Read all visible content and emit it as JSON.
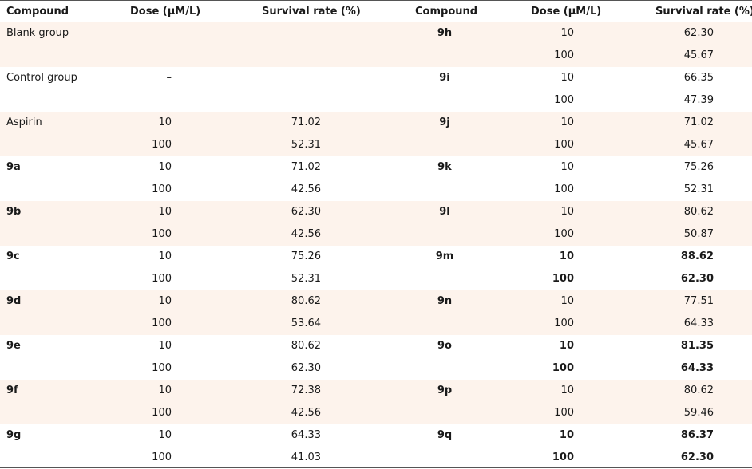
{
  "headers": [
    "Compound",
    "Dose (μM/L)",
    "Survival rate (%)",
    "Compound",
    "Dose (μM/L)",
    "Survival rate (%)"
  ],
  "groups": [
    {
      "left": {
        "compound": "Blank group",
        "compound_bold": false,
        "rows": [
          {
            "dose": "–",
            "rate": "",
            "bold": false
          },
          {
            "dose": "",
            "rate": "",
            "bold": false
          }
        ]
      },
      "right": {
        "compound": "9h",
        "compound_bold": true,
        "rows": [
          {
            "dose": "10",
            "rate": "62.30",
            "bold": false
          },
          {
            "dose": "100",
            "rate": "45.67",
            "bold": false
          }
        ]
      }
    },
    {
      "left": {
        "compound": "Control group",
        "compound_bold": false,
        "rows": [
          {
            "dose": "–",
            "rate": "",
            "bold": false
          },
          {
            "dose": "",
            "rate": "",
            "bold": false
          }
        ]
      },
      "right": {
        "compound": "9i",
        "compound_bold": true,
        "rows": [
          {
            "dose": "10",
            "rate": "66.35",
            "bold": false
          },
          {
            "dose": "100",
            "rate": "47.39",
            "bold": false
          }
        ]
      }
    },
    {
      "left": {
        "compound": "Aspirin",
        "compound_bold": false,
        "rows": [
          {
            "dose": "10",
            "rate": "71.02",
            "bold": false
          },
          {
            "dose": "100",
            "rate": "52.31",
            "bold": false
          }
        ]
      },
      "right": {
        "compound": "9j",
        "compound_bold": true,
        "rows": [
          {
            "dose": "10",
            "rate": "71.02",
            "bold": false
          },
          {
            "dose": "100",
            "rate": "45.67",
            "bold": false
          }
        ]
      }
    },
    {
      "left": {
        "compound": "9a",
        "compound_bold": true,
        "rows": [
          {
            "dose": "10",
            "rate": "71.02",
            "bold": false
          },
          {
            "dose": "100",
            "rate": "42.56",
            "bold": false
          }
        ]
      },
      "right": {
        "compound": "9k",
        "compound_bold": true,
        "rows": [
          {
            "dose": "10",
            "rate": "75.26",
            "bold": false
          },
          {
            "dose": "100",
            "rate": "52.31",
            "bold": false
          }
        ]
      }
    },
    {
      "left": {
        "compound": "9b",
        "compound_bold": true,
        "rows": [
          {
            "dose": "10",
            "rate": "62.30",
            "bold": false
          },
          {
            "dose": "100",
            "rate": "42.56",
            "bold": false
          }
        ]
      },
      "right": {
        "compound": "9l",
        "compound_bold": true,
        "rows": [
          {
            "dose": "10",
            "rate": "80.62",
            "bold": false
          },
          {
            "dose": "100",
            "rate": "50.87",
            "bold": false
          }
        ]
      }
    },
    {
      "left": {
        "compound": "9c",
        "compound_bold": true,
        "rows": [
          {
            "dose": "10",
            "rate": "75.26",
            "bold": false
          },
          {
            "dose": "100",
            "rate": "52.31",
            "bold": false
          }
        ]
      },
      "right": {
        "compound": "9m",
        "compound_bold": true,
        "rows": [
          {
            "dose": "10",
            "rate": "88.62",
            "bold": true
          },
          {
            "dose": "100",
            "rate": "62.30",
            "bold": true
          }
        ]
      }
    },
    {
      "left": {
        "compound": "9d",
        "compound_bold": true,
        "rows": [
          {
            "dose": "10",
            "rate": "80.62",
            "bold": false
          },
          {
            "dose": "100",
            "rate": "53.64",
            "bold": false
          }
        ]
      },
      "right": {
        "compound": "9n",
        "compound_bold": true,
        "rows": [
          {
            "dose": "10",
            "rate": "77.51",
            "bold": false
          },
          {
            "dose": "100",
            "rate": "64.33",
            "bold": false
          }
        ]
      }
    },
    {
      "left": {
        "compound": "9e",
        "compound_bold": true,
        "rows": [
          {
            "dose": "10",
            "rate": "80.62",
            "bold": false
          },
          {
            "dose": "100",
            "rate": "62.30",
            "bold": false
          }
        ]
      },
      "right": {
        "compound": "9o",
        "compound_bold": true,
        "rows": [
          {
            "dose": "10",
            "rate": "81.35",
            "bold": true
          },
          {
            "dose": "100",
            "rate": "64.33",
            "bold": true
          }
        ]
      }
    },
    {
      "left": {
        "compound": "9f",
        "compound_bold": true,
        "rows": [
          {
            "dose": "10",
            "rate": "72.38",
            "bold": false
          },
          {
            "dose": "100",
            "rate": "42.56",
            "bold": false
          }
        ]
      },
      "right": {
        "compound": "9p",
        "compound_bold": true,
        "rows": [
          {
            "dose": "10",
            "rate": "80.62",
            "bold": false
          },
          {
            "dose": "100",
            "rate": "59.46",
            "bold": false
          }
        ]
      }
    },
    {
      "left": {
        "compound": "9g",
        "compound_bold": true,
        "rows": [
          {
            "dose": "10",
            "rate": "64.33",
            "bold": false
          },
          {
            "dose": "100",
            "rate": "41.03",
            "bold": false
          }
        ]
      },
      "right": {
        "compound": "9q",
        "compound_bold": true,
        "rows": [
          {
            "dose": "10",
            "rate": "86.37",
            "bold": true
          },
          {
            "dose": "100",
            "rate": "62.30",
            "bold": true
          }
        ]
      }
    }
  ],
  "colors": {
    "shade": "#fdf3ec",
    "rule": "#555555"
  }
}
